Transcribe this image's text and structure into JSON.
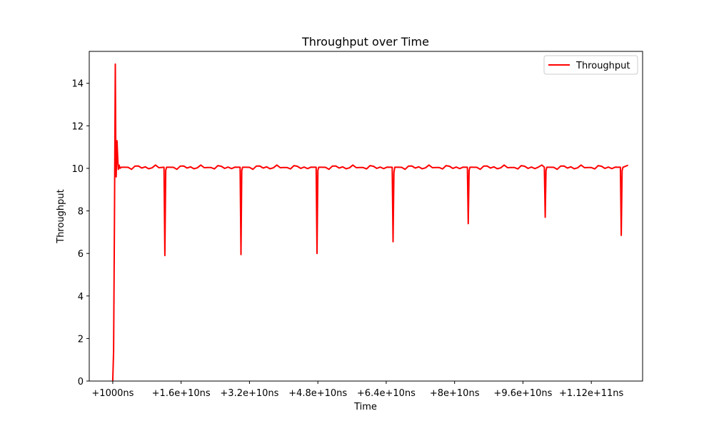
{
  "chart_data": {
    "type": "line",
    "title": "Throughput over Time",
    "xlabel": "Time",
    "ylabel": "Throughput",
    "x_unit": "ns",
    "xlim": [
      -5500000000,
      124000000000.0
    ],
    "ylim": [
      0,
      15.5
    ],
    "x_ticks": [
      {
        "value": 1000,
        "label": "+1000ns"
      },
      {
        "value": 16000000000,
        "label": "+1.6e+10ns"
      },
      {
        "value": 32000000000,
        "label": "+3.2e+10ns"
      },
      {
        "value": 48000000000,
        "label": "+4.8e+10ns"
      },
      {
        "value": 64000000000,
        "label": "+6.4e+10ns"
      },
      {
        "value": 80000000000,
        "label": "+8e+10ns"
      },
      {
        "value": 96000000000,
        "label": "+9.6e+10ns"
      },
      {
        "value": 112000000000,
        "label": "+1.12e+11ns"
      }
    ],
    "y_ticks": [
      {
        "value": 0,
        "label": "0"
      },
      {
        "value": 2,
        "label": "2"
      },
      {
        "value": 4,
        "label": "4"
      },
      {
        "value": 6,
        "label": "6"
      },
      {
        "value": 8,
        "label": "8"
      },
      {
        "value": 10,
        "label": "10"
      },
      {
        "value": 12,
        "label": "12"
      },
      {
        "value": 14,
        "label": "14"
      }
    ],
    "grid": false,
    "legend": {
      "position": "top-right",
      "entries": [
        "Throughput"
      ]
    },
    "series": [
      {
        "name": "Throughput",
        "color": "#ff0000",
        "x": [
          0,
          200000000,
          400000000,
          600000000,
          700000000,
          800000000,
          1000000000,
          1200000000,
          1300000000,
          1500000000,
          1700000000,
          2000000000,
          12000000000,
          12200000000,
          12400000000,
          12600000000,
          29800000000,
          30000000000,
          30200000000,
          30400000000,
          47600000000,
          47800000000,
          48000000000,
          48200000000,
          65400000000,
          65600000000,
          65800000000,
          66000000000,
          83000000000,
          83200000000,
          83400000000,
          83600000000,
          101000000000,
          101200000000,
          101400000000,
          101600000000,
          118800000000,
          119000000000,
          119200000000,
          119400000000,
          120600000000
        ],
        "y": [
          0,
          1.4,
          7.5,
          14.9,
          11.2,
          9.6,
          11.3,
          10.3,
          9.95,
          10.15,
          10.0,
          10.05,
          10.05,
          5.9,
          9.9,
          10.05,
          10.05,
          5.95,
          9.9,
          10.05,
          10.05,
          6.0,
          9.9,
          10.05,
          10.05,
          6.55,
          9.8,
          10.05,
          10.05,
          7.4,
          9.9,
          10.05,
          10.05,
          7.7,
          9.9,
          10.05,
          10.05,
          6.85,
          9.9,
          10.05,
          10.15
        ]
      }
    ]
  }
}
